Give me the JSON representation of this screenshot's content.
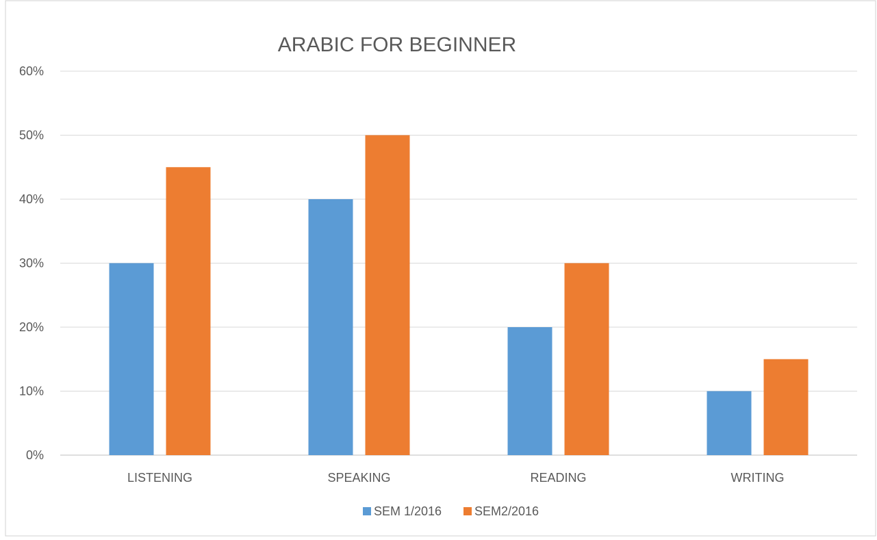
{
  "chart_data": {
    "type": "bar",
    "title": "ARABIC FOR BEGINNER",
    "categories": [
      "LISTENING",
      "SPEAKING",
      "READING",
      "WRITING"
    ],
    "series": [
      {
        "name": "SEM 1/2016",
        "values": [
          30,
          40,
          20,
          10
        ],
        "color": "#5B9BD5"
      },
      {
        "name": "SEM2/2016",
        "values": [
          45,
          50,
          30,
          15
        ],
        "color": "#ED7D31"
      }
    ],
    "ylim": [
      0,
      60
    ],
    "yticks": [
      0,
      10,
      20,
      30,
      40,
      50,
      60
    ],
    "ytick_labels": [
      "0%",
      "10%",
      "20%",
      "30%",
      "40%",
      "50%",
      "60%"
    ],
    "grid": true,
    "legend_position": "bottom"
  }
}
